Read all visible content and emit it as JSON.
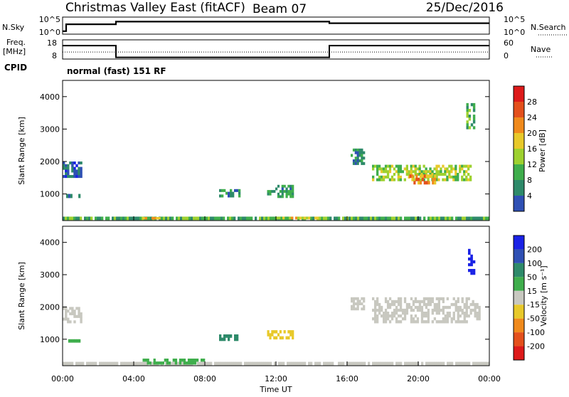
{
  "header": {
    "station": "Christmas Valley East (fitACF)",
    "beam": "Beam 07",
    "date": "25/Dec/2016"
  },
  "nsky_panel": {
    "left_label": "N.Sky",
    "right_label": "N.Search",
    "left_ticks": [
      "10^5",
      "10^0"
    ],
    "right_ticks": [
      "10^5",
      "10^0"
    ]
  },
  "freq_panel": {
    "left_label_1": "Freq.",
    "left_label_2": "[MHz]",
    "right_label": "Nave",
    "left_ticks": [
      "18",
      "8"
    ],
    "right_ticks": [
      "60",
      "0"
    ],
    "cpid_label": "CPID",
    "cpid_value": "normal (fast) 151 RF"
  },
  "colors": {
    "power_scale": [
      "#1a22e6",
      "#2f50b4",
      "#2e8a6a",
      "#3fae4c",
      "#9ed12f",
      "#e8c92a",
      "#f08a1c",
      "#e4501c",
      "#dd1a1a"
    ],
    "velocity_scale": [
      "#1a22e6",
      "#2f50b4",
      "#2e8a6a",
      "#3fae4c",
      "#c8c8c0",
      "#e8c92a",
      "#f08a1c",
      "#e4501c",
      "#dd1a1a"
    ]
  },
  "chart_data": [
    {
      "type": "line",
      "panel": "nsky-nsearch",
      "x_range_hours": [
        0,
        24
      ],
      "series": [
        {
          "name": "N.Sky",
          "x": [
            0,
            0.2,
            0.2,
            3.0,
            3.0,
            15.0,
            15.0,
            24
          ],
          "y": [
            0.1,
            0.1,
            0.55,
            0.55,
            0.72,
            0.72,
            0.62,
            0.62
          ]
        }
      ]
    },
    {
      "type": "line",
      "panel": "freq-nave",
      "x_range_hours": [
        0,
        24
      ],
      "series": [
        {
          "name": "Freq.",
          "x": [
            0,
            3.0,
            3.0,
            15.0,
            15.0,
            24
          ],
          "y": [
            15,
            15,
            8.9,
            8.9,
            15,
            15
          ]
        },
        {
          "name": "Nave",
          "x": [
            0,
            24
          ],
          "y": [
            22,
            22
          ]
        }
      ]
    },
    {
      "type": "heatmap",
      "panel": "power",
      "ylabel": "Slant Range [km]",
      "yticks": [
        "1000",
        "2000",
        "3000",
        "4000"
      ],
      "ylim": [
        180,
        4500
      ],
      "xlim": [
        0,
        24
      ],
      "colorbar": {
        "label": "Power [dB]",
        "ticks": [
          "4",
          "8",
          "12",
          "16",
          "20",
          "24",
          "28"
        ]
      },
      "regions": [
        {
          "x": [
            0.0,
            24.0
          ],
          "y": [
            200,
            300
          ],
          "value": 12
        },
        {
          "x": [
            4.5,
            5.5
          ],
          "y": [
            220,
            290
          ],
          "value": 22
        },
        {
          "x": [
            12.0,
            15.0
          ],
          "y": [
            220,
            300
          ],
          "value": 18
        },
        {
          "x": [
            0.0,
            1.1
          ],
          "y": [
            1500,
            2000
          ],
          "value": 6
        },
        {
          "x": [
            0.2,
            1.0
          ],
          "y": [
            880,
            1000
          ],
          "value": 7
        },
        {
          "x": [
            8.8,
            10.0
          ],
          "y": [
            900,
            1150
          ],
          "value": 9
        },
        {
          "x": [
            11.5,
            13.0
          ],
          "y": [
            880,
            1280
          ],
          "value": 10
        },
        {
          "x": [
            16.2,
            17.0
          ],
          "y": [
            1900,
            2400
          ],
          "value": 9
        },
        {
          "x": [
            17.4,
            23.0
          ],
          "y": [
            1400,
            1900
          ],
          "value": 16
        },
        {
          "x": [
            19.5,
            21.0
          ],
          "y": [
            1300,
            1600
          ],
          "value": 24
        },
        {
          "x": [
            22.7,
            23.2
          ],
          "y": [
            3000,
            3800
          ],
          "value": 12
        }
      ]
    },
    {
      "type": "heatmap",
      "panel": "velocity",
      "xlabel": "Time UT",
      "ylabel": "Slant Range [km]",
      "xticks": [
        "00:00",
        "04:00",
        "08:00",
        "12:00",
        "16:00",
        "20:00",
        "00:00"
      ],
      "yticks": [
        "1000",
        "2000",
        "3000",
        "4000"
      ],
      "ylim": [
        180,
        4500
      ],
      "xlim": [
        0,
        24
      ],
      "colorbar": {
        "label": "Velocity [m s⁻¹]",
        "ticks": [
          "200",
          "100",
          "50",
          "15",
          "-15",
          "-50",
          "-100",
          "-200"
        ]
      },
      "regions": [
        {
          "x": [
            0.0,
            24.0
          ],
          "y": [
            200,
            300
          ],
          "value": 0
        },
        {
          "x": [
            4.5,
            8.0
          ],
          "y": [
            220,
            400
          ],
          "value": 40
        },
        {
          "x": [
            0.0,
            1.1
          ],
          "y": [
            1500,
            2000
          ],
          "value": 0
        },
        {
          "x": [
            0.2,
            1.0
          ],
          "y": [
            900,
            1000
          ],
          "value": 30
        },
        {
          "x": [
            8.8,
            10.0
          ],
          "y": [
            950,
            1150
          ],
          "value": 80
        },
        {
          "x": [
            11.5,
            13.0
          ],
          "y": [
            1000,
            1280
          ],
          "value": -40
        },
        {
          "x": [
            16.2,
            17.0
          ],
          "y": [
            1900,
            2300
          ],
          "value": 0
        },
        {
          "x": [
            17.4,
            23.5
          ],
          "y": [
            1500,
            2300
          ],
          "value": 0
        },
        {
          "x": [
            22.8,
            23.2
          ],
          "y": [
            3000,
            3800
          ],
          "value": 220
        }
      ]
    }
  ]
}
